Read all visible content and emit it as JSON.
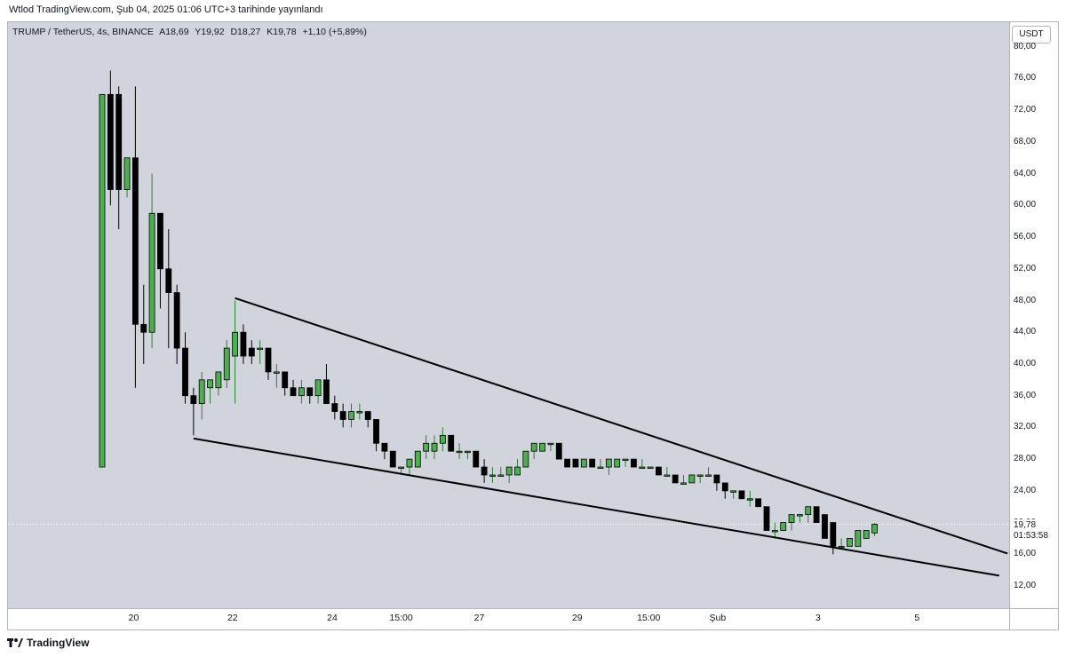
{
  "header": {
    "published": "Wtlod TradingView.com, Şub 04, 2025 01:06 UTC+3 tarihinde yayınlandı"
  },
  "legend": {
    "symbol": "TRUMP / TetherUS, 4s, BINANCE",
    "open": "A18,69",
    "high": "Y19,92",
    "low": "D18,27",
    "close": "K19,78",
    "change": "+1,10 (+5,89%)"
  },
  "currency": "USDT",
  "last_price": {
    "value": "19,78",
    "countdown": "01:53:58"
  },
  "footer": {
    "brand": "TradingView"
  },
  "colors": {
    "up": "#4caf50",
    "down": "#000000",
    "plot_bg": "#d1d4dc",
    "trendline": "#000000"
  },
  "chart_data": {
    "type": "candlestick",
    "title": "",
    "y_axis": {
      "ticks": [
        "80,00",
        "76,00",
        "72,00",
        "68,00",
        "64,00",
        "60,00",
        "56,00",
        "52,00",
        "48,00",
        "44,00",
        "40,00",
        "36,00",
        "32,00",
        "28,00",
        "24,00",
        "20,00",
        "16,00",
        "12,00"
      ],
      "ylim": [
        9,
        83
      ]
    },
    "x_axis": {
      "ticks": [
        "20",
        "22",
        "24",
        "15:00",
        "27",
        "29",
        "15:00",
        "Şub",
        "3",
        "5"
      ]
    },
    "candles": [
      {
        "o": 27,
        "h": 74,
        "l": 27,
        "c": 74
      },
      {
        "o": 74,
        "h": 77,
        "l": 60,
        "c": 62
      },
      {
        "o": 74,
        "h": 75,
        "l": 57,
        "c": 62
      },
      {
        "o": 62,
        "h": 66,
        "l": 61,
        "c": 66
      },
      {
        "o": 66,
        "h": 75,
        "l": 37,
        "c": 45
      },
      {
        "o": 45,
        "h": 50,
        "l": 40,
        "c": 44
      },
      {
        "o": 44,
        "h": 64,
        "l": 42,
        "c": 59
      },
      {
        "o": 59,
        "h": 59,
        "l": 47,
        "c": 52
      },
      {
        "o": 52,
        "h": 57,
        "l": 42,
        "c": 49
      },
      {
        "o": 49,
        "h": 50,
        "l": 40,
        "c": 42
      },
      {
        "o": 42,
        "h": 44,
        "l": 35,
        "c": 36
      },
      {
        "o": 36,
        "h": 37,
        "l": 31,
        "c": 35
      },
      {
        "o": 35,
        "h": 39,
        "l": 33,
        "c": 38
      },
      {
        "o": 37,
        "h": 38,
        "l": 35,
        "c": 38
      },
      {
        "o": 37,
        "h": 39,
        "l": 36,
        "c": 39
      },
      {
        "o": 38,
        "h": 43,
        "l": 37,
        "c": 42
      },
      {
        "o": 41,
        "h": 48,
        "l": 35,
        "c": 44
      },
      {
        "o": 44,
        "h": 45,
        "l": 40,
        "c": 41
      },
      {
        "o": 42,
        "h": 43,
        "l": 40,
        "c": 41
      },
      {
        "o": 42,
        "h": 43,
        "l": 40,
        "c": 42
      },
      {
        "o": 42,
        "h": 42,
        "l": 38,
        "c": 39
      },
      {
        "o": 39,
        "h": 40,
        "l": 37,
        "c": 39
      },
      {
        "o": 39,
        "h": 39,
        "l": 36,
        "c": 37
      },
      {
        "o": 37,
        "h": 38,
        "l": 36,
        "c": 36
      },
      {
        "o": 36,
        "h": 38,
        "l": 35,
        "c": 37
      },
      {
        "o": 37,
        "h": 37,
        "l": 35,
        "c": 36
      },
      {
        "o": 36,
        "h": 38,
        "l": 35,
        "c": 38
      },
      {
        "o": 38,
        "h": 40,
        "l": 35,
        "c": 35
      },
      {
        "o": 35,
        "h": 36,
        "l": 33,
        "c": 34
      },
      {
        "o": 34,
        "h": 35,
        "l": 32,
        "c": 33
      },
      {
        "o": 33,
        "h": 35,
        "l": 32,
        "c": 34
      },
      {
        "o": 34,
        "h": 35,
        "l": 33,
        "c": 34
      },
      {
        "o": 34,
        "h": 34,
        "l": 32,
        "c": 33
      },
      {
        "o": 33,
        "h": 33,
        "l": 29,
        "c": 30
      },
      {
        "o": 30,
        "h": 30,
        "l": 28,
        "c": 29
      },
      {
        "o": 29,
        "h": 29,
        "l": 27,
        "c": 27
      },
      {
        "o": 27,
        "h": 27,
        "l": 26,
        "c": 27
      },
      {
        "o": 27,
        "h": 28,
        "l": 26,
        "c": 28
      },
      {
        "o": 27,
        "h": 29,
        "l": 27,
        "c": 29
      },
      {
        "o": 29,
        "h": 31,
        "l": 28,
        "c": 30
      },
      {
        "o": 29,
        "h": 31,
        "l": 28,
        "c": 30
      },
      {
        "o": 30,
        "h": 32,
        "l": 29,
        "c": 31
      },
      {
        "o": 31,
        "h": 31,
        "l": 29,
        "c": 29
      },
      {
        "o": 29,
        "h": 30,
        "l": 28,
        "c": 29
      },
      {
        "o": 29,
        "h": 29,
        "l": 28,
        "c": 29
      },
      {
        "o": 29,
        "h": 29,
        "l": 27,
        "c": 27
      },
      {
        "o": 27,
        "h": 28,
        "l": 25,
        "c": 26
      },
      {
        "o": 26,
        "h": 27,
        "l": 25,
        "c": 26
      },
      {
        "o": 26,
        "h": 27,
        "l": 26,
        "c": 26
      },
      {
        "o": 26,
        "h": 27,
        "l": 25,
        "c": 27
      },
      {
        "o": 26,
        "h": 28,
        "l": 26,
        "c": 27
      },
      {
        "o": 27,
        "h": 29,
        "l": 27,
        "c": 29
      },
      {
        "o": 29,
        "h": 30,
        "l": 28,
        "c": 30
      },
      {
        "o": 29,
        "h": 30,
        "l": 29,
        "c": 30
      },
      {
        "o": 30,
        "h": 30,
        "l": 29,
        "c": 30
      },
      {
        "o": 30,
        "h": 30,
        "l": 28,
        "c": 28
      },
      {
        "o": 28,
        "h": 28,
        "l": 27,
        "c": 27
      },
      {
        "o": 28,
        "h": 28,
        "l": 27,
        "c": 27
      },
      {
        "o": 27,
        "h": 28,
        "l": 27,
        "c": 28
      },
      {
        "o": 28,
        "h": 28,
        "l": 27,
        "c": 27
      },
      {
        "o": 27,
        "h": 28,
        "l": 27,
        "c": 27
      },
      {
        "o": 27,
        "h": 28,
        "l": 26,
        "c": 28
      },
      {
        "o": 27,
        "h": 28,
        "l": 27,
        "c": 28
      },
      {
        "o": 28,
        "h": 28,
        "l": 27,
        "c": 28
      },
      {
        "o": 28,
        "h": 28,
        "l": 27,
        "c": 27
      },
      {
        "o": 27,
        "h": 28,
        "l": 27,
        "c": 27
      },
      {
        "o": 27,
        "h": 27,
        "l": 27,
        "c": 27
      },
      {
        "o": 27,
        "h": 27,
        "l": 26,
        "c": 26
      },
      {
        "o": 26,
        "h": 27,
        "l": 26,
        "c": 26
      },
      {
        "o": 26,
        "h": 26,
        "l": 25,
        "c": 25
      },
      {
        "o": 25,
        "h": 26,
        "l": 25,
        "c": 25
      },
      {
        "o": 25,
        "h": 26,
        "l": 25,
        "c": 26
      },
      {
        "o": 26,
        "h": 26,
        "l": 25,
        "c": 26
      },
      {
        "o": 26,
        "h": 27,
        "l": 26,
        "c": 26
      },
      {
        "o": 26,
        "h": 26,
        "l": 24,
        "c": 25
      },
      {
        "o": 25,
        "h": 25,
        "l": 23,
        "c": 24
      },
      {
        "o": 24,
        "h": 24,
        "l": 23,
        "c": 24
      },
      {
        "o": 24,
        "h": 24,
        "l": 23,
        "c": 23
      },
      {
        "o": 23,
        "h": 24,
        "l": 22,
        "c": 23
      },
      {
        "o": 23,
        "h": 23,
        "l": 22,
        "c": 22
      },
      {
        "o": 22,
        "h": 22,
        "l": 19,
        "c": 19
      },
      {
        "o": 19,
        "h": 20,
        "l": 18,
        "c": 19
      },
      {
        "o": 19,
        "h": 20,
        "l": 19,
        "c": 20
      },
      {
        "o": 20,
        "h": 21,
        "l": 19,
        "c": 21
      },
      {
        "o": 21,
        "h": 21,
        "l": 20,
        "c": 21
      },
      {
        "o": 21,
        "h": 22,
        "l": 20,
        "c": 22
      },
      {
        "o": 22,
        "h": 22,
        "l": 20,
        "c": 20
      },
      {
        "o": 21,
        "h": 21,
        "l": 18,
        "c": 18
      },
      {
        "o": 20,
        "h": 20,
        "l": 16,
        "c": 17
      },
      {
        "o": 17,
        "h": 18,
        "l": 17,
        "c": 17
      },
      {
        "o": 17,
        "h": 18,
        "l": 17,
        "c": 18
      },
      {
        "o": 17,
        "h": 19,
        "l": 17,
        "c": 19
      },
      {
        "o": 18,
        "h": 19,
        "l": 18,
        "c": 19
      },
      {
        "o": 18.69,
        "h": 19.92,
        "l": 18.27,
        "c": 19.78
      }
    ],
    "trendlines": [
      {
        "name": "upper",
        "from": {
          "i": 16,
          "y": 48.3
        },
        "to": {
          "i": 109,
          "y": 16.1
        }
      },
      {
        "name": "lower",
        "from": {
          "i": 11,
          "y": 30.6
        },
        "to": {
          "i": 108,
          "y": 13.3
        }
      }
    ],
    "last_price_line": 19.78
  }
}
